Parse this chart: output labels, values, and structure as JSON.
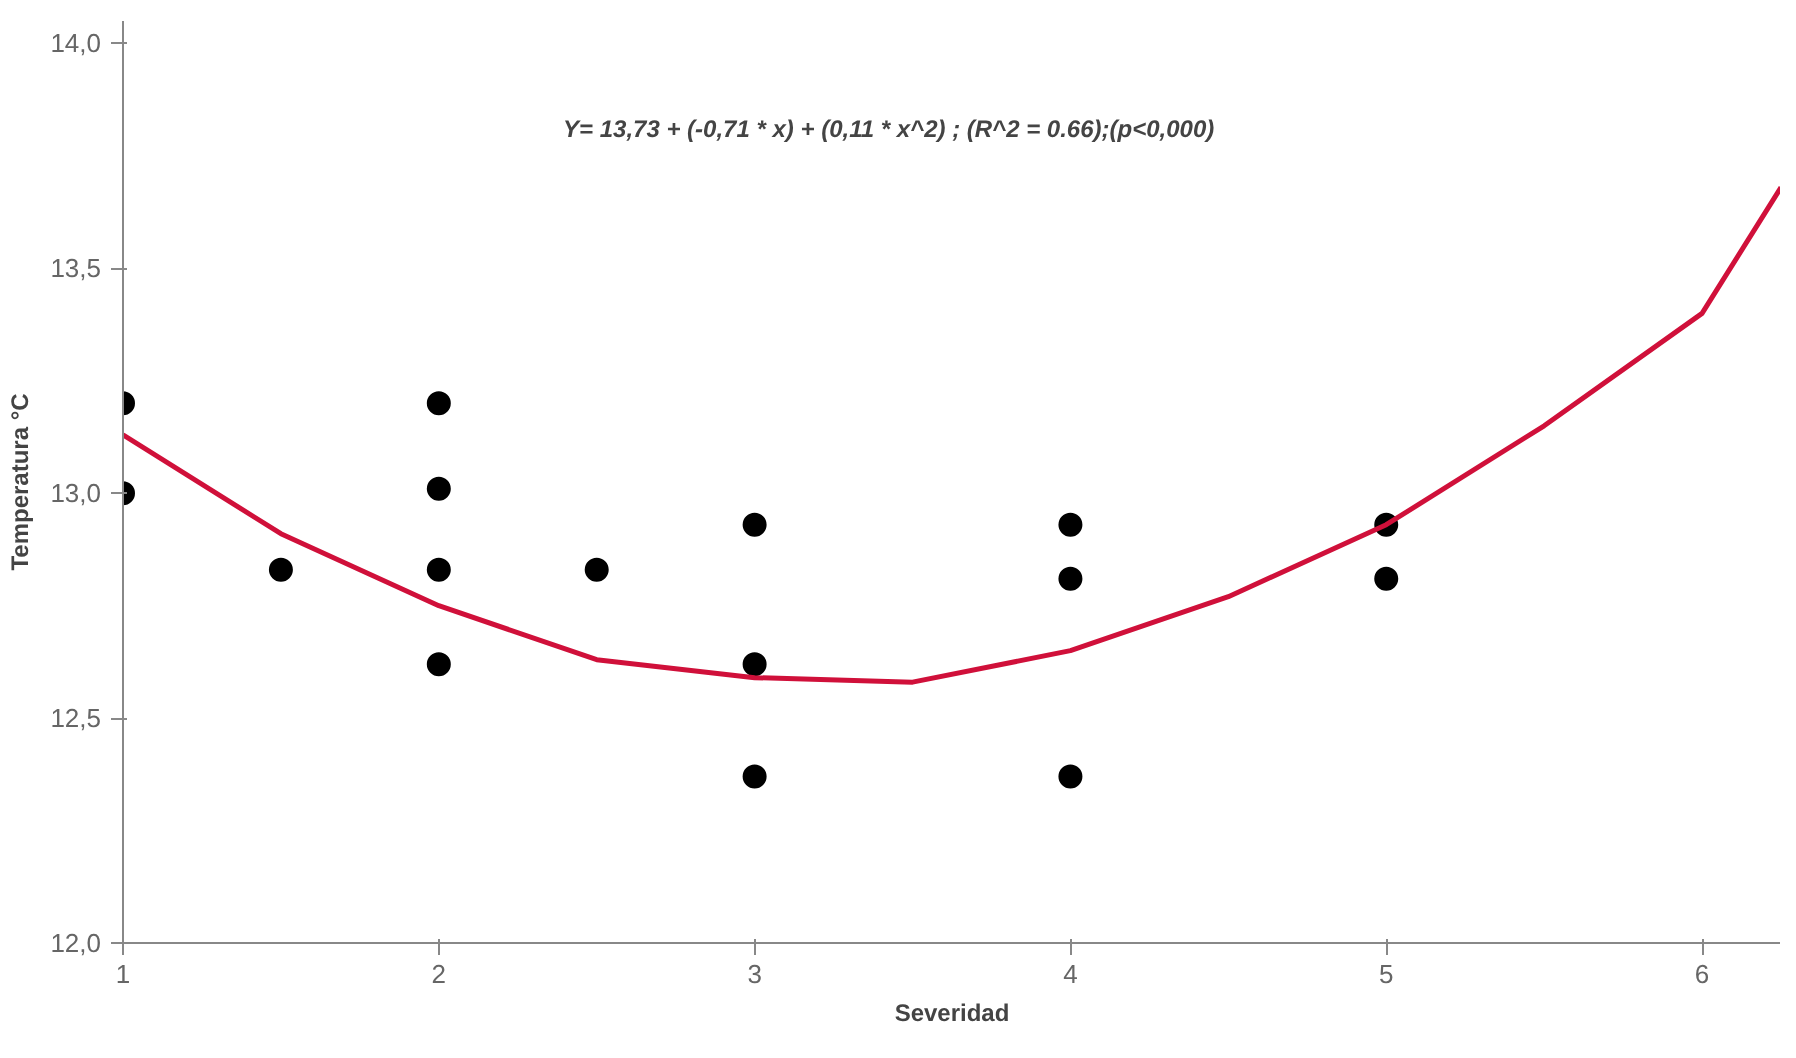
{
  "chart_data": {
    "type": "scatter",
    "xlabel": "Severidad",
    "ylabel": "Temperatura °C",
    "annotations": [
      "Y= 13,73 + (-0,71 * x) + (0,11 * x^2) ; (R^2 = 0.66);(p<0,000)"
    ],
    "xlim": [
      1,
      6.25
    ],
    "ylim": [
      12.0,
      14.05
    ],
    "xticks": [
      1,
      2,
      3,
      4,
      5,
      6
    ],
    "yticks": [
      {
        "value": 12.0,
        "label": "12,0"
      },
      {
        "value": 12.5,
        "label": "12,5"
      },
      {
        "value": 13.0,
        "label": "13,0"
      },
      {
        "value": 13.5,
        "label": "13,5"
      },
      {
        "value": 14.0,
        "label": "14,0"
      }
    ],
    "grid": false,
    "series": [
      {
        "color": "#000000",
        "marker": "circle",
        "x": [
          1,
          1,
          1.5,
          2,
          2,
          2,
          2,
          2.5,
          3,
          3,
          3,
          4,
          4,
          4,
          5,
          5
        ],
        "values": [
          13.2,
          13.0,
          12.83,
          13.2,
          13.01,
          12.83,
          12.62,
          12.83,
          12.93,
          12.62,
          12.37,
          12.93,
          12.81,
          12.37,
          12.93,
          12.81
        ]
      },
      {
        "type": "line",
        "color": "#d0103a",
        "line_style": "solid",
        "marker": "none",
        "x": [
          1,
          1.5,
          2,
          2.5,
          3,
          3.5,
          4,
          4.5,
          5,
          5.5,
          6,
          6.25
        ],
        "values": [
          13.13,
          12.91,
          12.75,
          12.63,
          12.59,
          12.58,
          12.65,
          12.77,
          12.93,
          13.15,
          13.4,
          13.68
        ]
      }
    ]
  }
}
